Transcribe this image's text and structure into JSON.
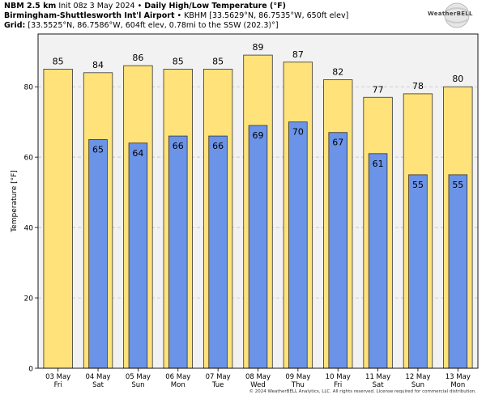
{
  "header": {
    "model": "NBM 2.5 km",
    "init": "Init 08z 3 May 2024",
    "product": "Daily High/Low Temperature (°F)",
    "station_name": "Birmingham-Shuttlesworth Int'l Airport",
    "station_info": "KBHM [33.5629°N, 86.7535°W, 650ft elev]",
    "grid_label": "Grid:",
    "grid_info": "[33.5525°N, 86.7586°W, 604ft elev, 0.78mi to the SSW (202.3)°]"
  },
  "logo": {
    "text": "WeatherBELL"
  },
  "footer": "© 2024 WeatherBELL Analytics, LLC. All rights reserved. License required for commercial distribution.",
  "colors": {
    "high": "#ffe27a",
    "low": "#6b93e8",
    "stroke": "#333333",
    "grid": "#bbbbbb",
    "background": "#f2f2f2"
  },
  "chart_data": {
    "type": "bar",
    "title": "Daily High/Low Temperature (°F)",
    "ylabel": "Temperature [°F]",
    "xlabel": "",
    "ylim": [
      0,
      95
    ],
    "yticks": [
      0,
      20,
      40,
      60,
      80
    ],
    "grid": true,
    "categories": [
      "03 May",
      "04 May",
      "05 May",
      "06 May",
      "07 May",
      "08 May",
      "09 May",
      "10 May",
      "11 May",
      "12 May",
      "13 May"
    ],
    "weekdays": [
      "Fri",
      "Sat",
      "Sun",
      "Mon",
      "Tue",
      "Wed",
      "Thu",
      "Fri",
      "Sat",
      "Sun",
      "Mon"
    ],
    "series": [
      {
        "key": "high",
        "values": [
          85,
          84,
          86,
          85,
          85,
          89,
          87,
          82,
          77,
          78,
          80
        ]
      },
      {
        "key": "low",
        "values": [
          null,
          65,
          64,
          66,
          66,
          69,
          70,
          67,
          61,
          55,
          55
        ]
      }
    ]
  }
}
